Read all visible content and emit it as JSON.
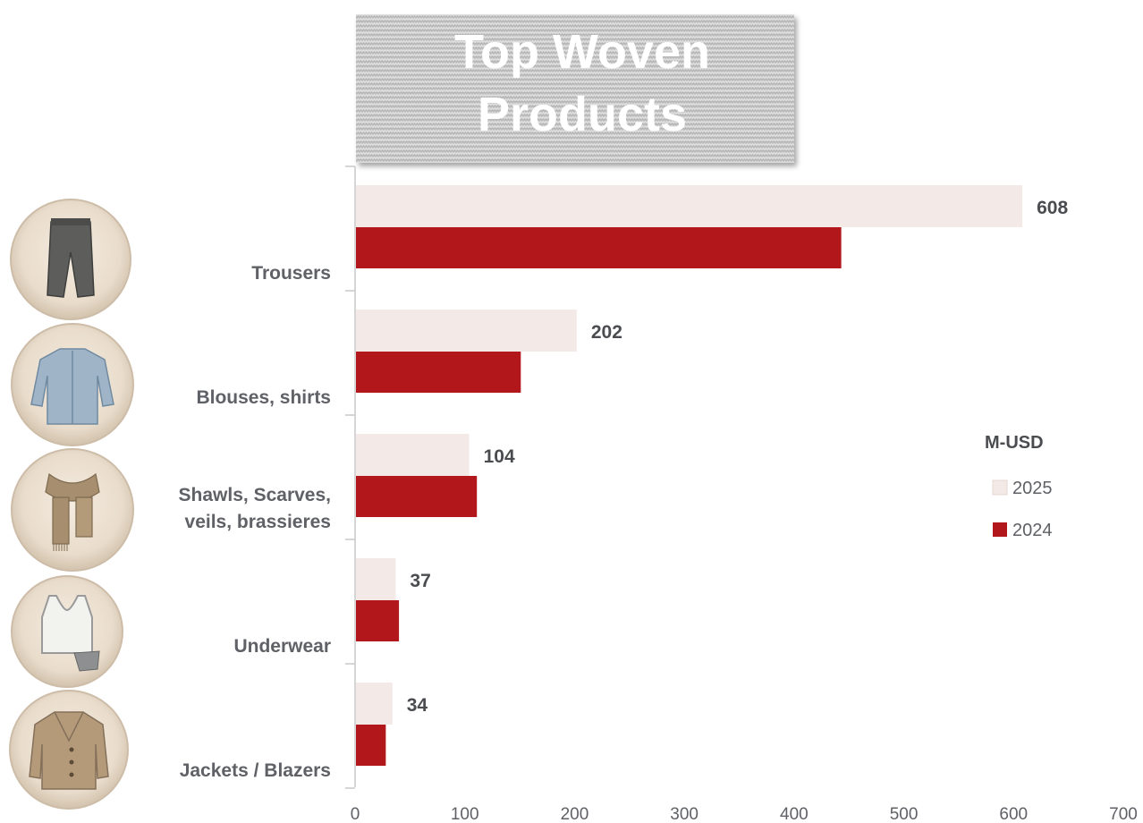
{
  "chart_data": {
    "type": "bar",
    "orientation": "horizontal",
    "title": "Top Woven Products",
    "categories": [
      "Trousers",
      "Blouses, shirts",
      "Shawls, Scarves, veils, brassieres",
      "Underwear",
      "Jackets / Blazers"
    ],
    "category_label_lines": [
      [
        "Trousers"
      ],
      [
        "Blouses, shirts"
      ],
      [
        "Shawls, Scarves,",
        "veils, brassieres"
      ],
      [
        "Underwear"
      ],
      [
        "Jackets / Blazers"
      ]
    ],
    "series": [
      {
        "name": "2025",
        "values": [
          608,
          202,
          104,
          37,
          34
        ],
        "color": "#f3e9e6"
      },
      {
        "name": "2024",
        "values": [
          443,
          151,
          111,
          40,
          28
        ],
        "color": "#b2181b"
      }
    ],
    "data_labels": [
      "608",
      "202",
      "104",
      "37",
      "34"
    ],
    "xlim": [
      0,
      700
    ],
    "xticks": [
      0,
      100,
      200,
      300,
      400,
      500,
      600,
      700
    ],
    "legend_title": "M-USD",
    "legend_position": "right",
    "grid": false,
    "icons": [
      "trousers-icon",
      "shirt-icon",
      "scarf-icon",
      "underwear-icon",
      "jacket-icon"
    ]
  }
}
